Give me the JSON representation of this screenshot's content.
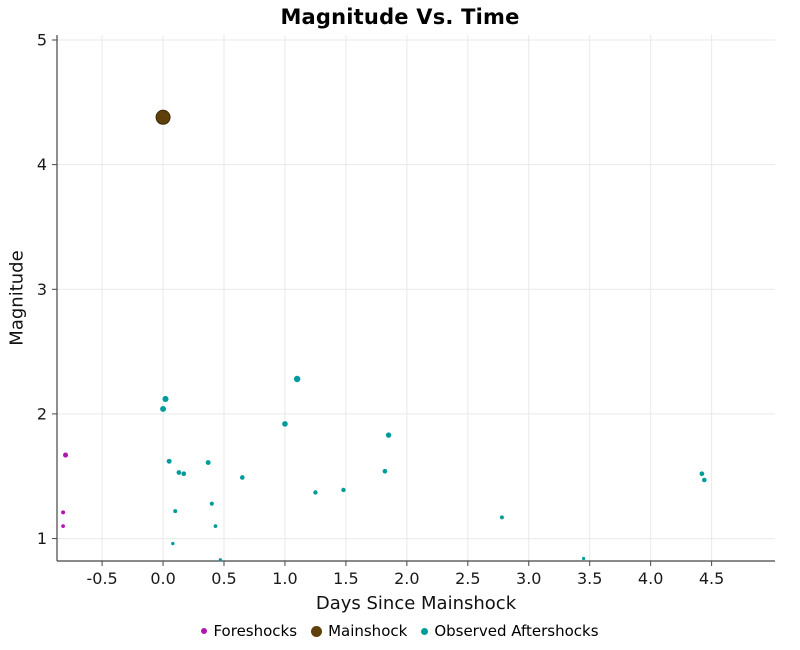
{
  "chart_data": {
    "type": "scatter",
    "title": "Magnitude Vs. Time",
    "xlabel": "Days Since Mainshock",
    "ylabel": "Magnitude",
    "xlim": [
      -0.87,
      5.02
    ],
    "ylim": [
      0.82,
      5.04
    ],
    "xticks": [
      -0.5,
      0.0,
      0.5,
      1.0,
      1.5,
      2.0,
      2.5,
      3.0,
      3.5,
      4.0,
      4.5
    ],
    "yticks": [
      1,
      2,
      3,
      4,
      5
    ],
    "grid": true,
    "legend_position": "bottom",
    "colors": {
      "grid": "#e9e9e9",
      "axis": "#454545",
      "tick_label": "#1a1a1a",
      "foreshocks": "#ae18ae",
      "mainshock": "#60400a",
      "aftershocks": "#009c9c"
    },
    "series": [
      {
        "id": "foreshocks",
        "label": "Foreshocks",
        "color": "#ae18ae",
        "points": [
          {
            "x": -0.8,
            "m": 1.67
          },
          {
            "x": -0.82,
            "m": 1.21
          },
          {
            "x": -0.82,
            "m": 1.1
          }
        ]
      },
      {
        "id": "mainshock",
        "label": "Mainshock",
        "color": "#60400a",
        "points": [
          {
            "x": 0.0,
            "m": 4.38
          }
        ]
      },
      {
        "id": "aftershocks",
        "label": "Observed Aftershocks",
        "color": "#009c9c",
        "points": [
          {
            "x": 0.02,
            "m": 2.12
          },
          {
            "x": 0.0,
            "m": 2.04
          },
          {
            "x": 0.05,
            "m": 1.62
          },
          {
            "x": 0.1,
            "m": 1.22
          },
          {
            "x": 0.13,
            "m": 1.53
          },
          {
            "x": 0.17,
            "m": 1.52
          },
          {
            "x": 0.08,
            "m": 0.96
          },
          {
            "x": 0.37,
            "m": 1.61
          },
          {
            "x": 0.4,
            "m": 1.28
          },
          {
            "x": 0.43,
            "m": 1.1
          },
          {
            "x": 0.47,
            "m": 0.83
          },
          {
            "x": 0.65,
            "m": 1.49
          },
          {
            "x": 1.0,
            "m": 1.92
          },
          {
            "x": 1.1,
            "m": 2.28
          },
          {
            "x": 1.25,
            "m": 1.37
          },
          {
            "x": 1.48,
            "m": 1.39
          },
          {
            "x": 1.82,
            "m": 1.54
          },
          {
            "x": 1.85,
            "m": 1.83
          },
          {
            "x": 2.78,
            "m": 1.17
          },
          {
            "x": 3.45,
            "m": 0.84
          },
          {
            "x": 4.42,
            "m": 1.52
          },
          {
            "x": 4.44,
            "m": 1.47
          }
        ]
      }
    ]
  }
}
